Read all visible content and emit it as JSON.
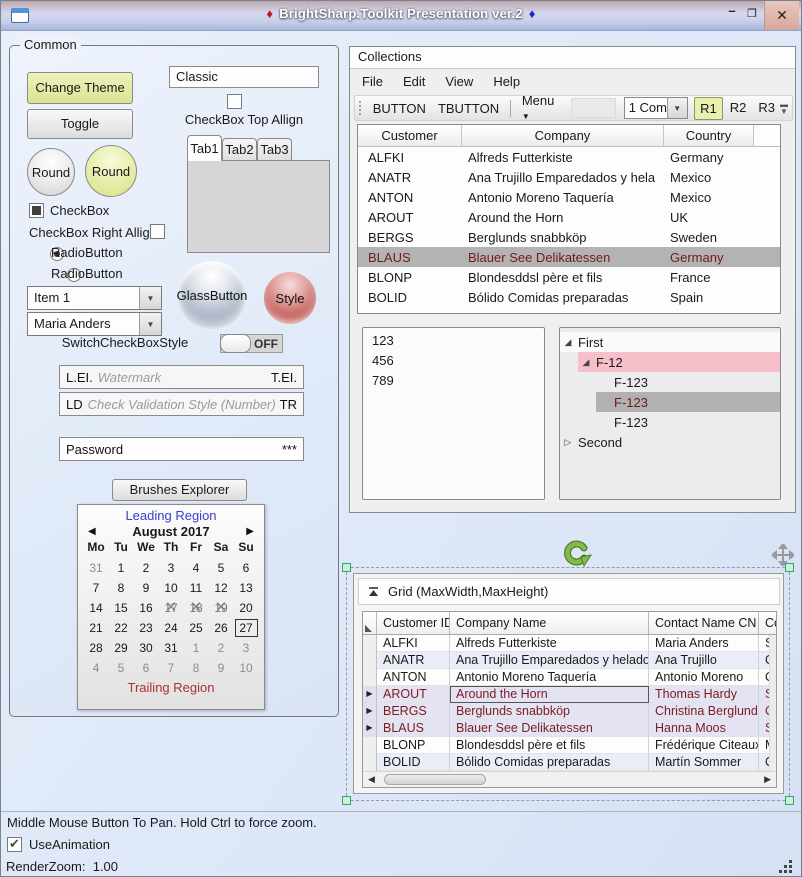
{
  "titlebar": {
    "title": "BrightSharp.Toolkit Presentation ver.2",
    "diamond_left": "♦",
    "diamond_right": "♦",
    "minimize_glyph": "–",
    "maximize_glyph": "❐",
    "close_glyph": "✕"
  },
  "common": {
    "label": "Common",
    "change_theme_button": "Change Theme",
    "theme_combo_value": "Classic",
    "checkbox_top_align_label": "CheckBox Top Allign",
    "toggle_button": "Toggle",
    "tabs": [
      "Tab1",
      "Tab2",
      "Tab3"
    ],
    "round_button_1": "Round",
    "round_button_2": "Round",
    "checkbox_label": "CheckBox",
    "checkbox_right_align_label": "CheckBox Right Allign",
    "radio_1": "RadioButton",
    "radio_2": "RadioButton",
    "combo_1_value": "Item 1",
    "combo_2_value": "Maria Anders",
    "glass_button": "GlassButton",
    "style_button": "Style",
    "switch_label": "SwitchCheckBoxStyle",
    "switch_state": "OFF",
    "watermark_box": {
      "left": "L.EI.",
      "placeholder": "Watermark",
      "right": "T.EI."
    },
    "validation_box": {
      "left": "LD",
      "placeholder": "Check Validation Style (Number)",
      "right": "TR"
    },
    "password_box": {
      "value": "Password",
      "mask": "***"
    },
    "brushes_explorer_button": "Brushes Explorer",
    "calendar": {
      "leading_region": "Leading Region",
      "month_title": "August 2017",
      "prev_arrow": "◀",
      "next_arrow": "▶",
      "day_headers": [
        "Mo",
        "Tu",
        "We",
        "Th",
        "Fr",
        "Sa",
        "Su"
      ],
      "days": [
        {
          "t": "31",
          "muted": true
        },
        {
          "t": "1"
        },
        {
          "t": "2"
        },
        {
          "t": "3"
        },
        {
          "t": "4"
        },
        {
          "t": "5"
        },
        {
          "t": "6"
        },
        {
          "t": "7"
        },
        {
          "t": "8"
        },
        {
          "t": "9"
        },
        {
          "t": "10"
        },
        {
          "t": "11"
        },
        {
          "t": "12"
        },
        {
          "t": "13"
        },
        {
          "t": "14"
        },
        {
          "t": "15"
        },
        {
          "t": "16"
        },
        {
          "t": "17",
          "blackout": true
        },
        {
          "t": "18",
          "blackout": true
        },
        {
          "t": "19",
          "blackout": true
        },
        {
          "t": "20"
        },
        {
          "t": "21"
        },
        {
          "t": "22"
        },
        {
          "t": "23"
        },
        {
          "t": "24"
        },
        {
          "t": "25"
        },
        {
          "t": "26"
        },
        {
          "t": "27",
          "today": true
        },
        {
          "t": "28"
        },
        {
          "t": "29"
        },
        {
          "t": "30"
        },
        {
          "t": "31"
        },
        {
          "t": "1",
          "muted": true
        },
        {
          "t": "2",
          "muted": true
        },
        {
          "t": "3",
          "muted": true
        },
        {
          "t": "4",
          "muted": true
        },
        {
          "t": "5",
          "muted": true
        },
        {
          "t": "6",
          "muted": true
        },
        {
          "t": "7",
          "muted": true
        },
        {
          "t": "8",
          "muted": true
        },
        {
          "t": "9",
          "muted": true
        },
        {
          "t": "10",
          "muted": true
        }
      ],
      "trailing_region": "Trailing Region"
    }
  },
  "collections": {
    "label": "Collections",
    "menu": [
      "File",
      "Edit",
      "View",
      "Help"
    ],
    "toolbar": {
      "button_1": "BUTTON",
      "button_2": "TBUTTON",
      "menu_button": "Menu",
      "menu_arrow": "▼",
      "combo_value": "1 Com",
      "radio_buttons": [
        "R1",
        "R2",
        "R3"
      ],
      "selected_radio": "R1"
    },
    "listview": {
      "columns": [
        "Customer",
        "Company",
        "Country"
      ],
      "rows": [
        [
          "ALFKI",
          "Alfreds Futterkiste",
          "Germany"
        ],
        [
          "ANATR",
          "Ana Trujillo Emparedados y hela",
          "Mexico"
        ],
        [
          "ANTON",
          "Antonio Moreno Taquería",
          "Mexico"
        ],
        [
          "AROUT",
          "Around the Horn",
          "UK"
        ],
        [
          "BERGS",
          "Berglunds snabbköp",
          "Sweden"
        ],
        [
          "BLAUS",
          "Blauer See Delikatessen",
          "Germany"
        ],
        [
          "BLONP",
          "Blondesddsl père et fils",
          "France"
        ],
        [
          "BOLID",
          "Bólido Comidas preparadas",
          "Spain"
        ]
      ],
      "selected_customer": "BLAUS"
    },
    "listbox_items": [
      "123",
      "456",
      "789"
    ],
    "treeview": [
      {
        "label": "First",
        "level": 0,
        "state": "expanded",
        "row": "light"
      },
      {
        "label": "F-12",
        "level": 1,
        "state": "expanded",
        "row": "pink"
      },
      {
        "label": "F-123",
        "level": 2
      },
      {
        "label": "F-123",
        "level": 2,
        "row": "selected"
      },
      {
        "label": "F-123",
        "level": 2
      },
      {
        "label": "Second",
        "level": 0,
        "state": "collapsed"
      }
    ]
  },
  "grid_panel": {
    "header": "Grid (MaxWidth,MaxHeight)",
    "columns": [
      "Customer ID",
      "Company Name",
      "Contact Name CN",
      "Cont"
    ],
    "rows": [
      {
        "cells": [
          "ALFKI",
          "Alfreds Futterkiste",
          "Maria Anders",
          "Sales"
        ]
      },
      {
        "cells": [
          "ANATR",
          "Ana Trujillo Emparedados y helados",
          "Ana Trujillo",
          "Owne"
        ]
      },
      {
        "cells": [
          "ANTON",
          "Antonio Moreno Taquería",
          "Antonio Moreno",
          "Owne"
        ]
      },
      {
        "cells": [
          "AROUT",
          "Around the Horn",
          "Thomas Hardy",
          "Sales"
        ],
        "selected": true,
        "current_cell": 1
      },
      {
        "cells": [
          "BERGS",
          "Berglunds snabbköp",
          "Christina Berglund",
          "Orde"
        ],
        "selected": true
      },
      {
        "cells": [
          "BLAUS",
          "Blauer See Delikatessen",
          "Hanna Moos",
          "Sales"
        ],
        "selected": true
      },
      {
        "cells": [
          "BLONP",
          "Blondesddsl père et fils",
          "Frédérique Citeaux",
          "Mark"
        ]
      },
      {
        "cells": [
          "BOLID",
          "Bólido Comidas preparadas",
          "Martín Sommer",
          "Owne"
        ]
      }
    ]
  },
  "status": {
    "pan_hint": "Middle Mouse Button To Pan. Hold Ctrl to force zoom.",
    "use_animation_label": "UseAnimation",
    "render_zoom_label": "RenderZoom:",
    "render_zoom_value": "1.00"
  },
  "colors": {
    "accent_green_button": "#dde394",
    "selection_text": "#701b1b",
    "tree_pink_row": "#f6bfca",
    "rotate_arrow_green": "#76b043"
  }
}
